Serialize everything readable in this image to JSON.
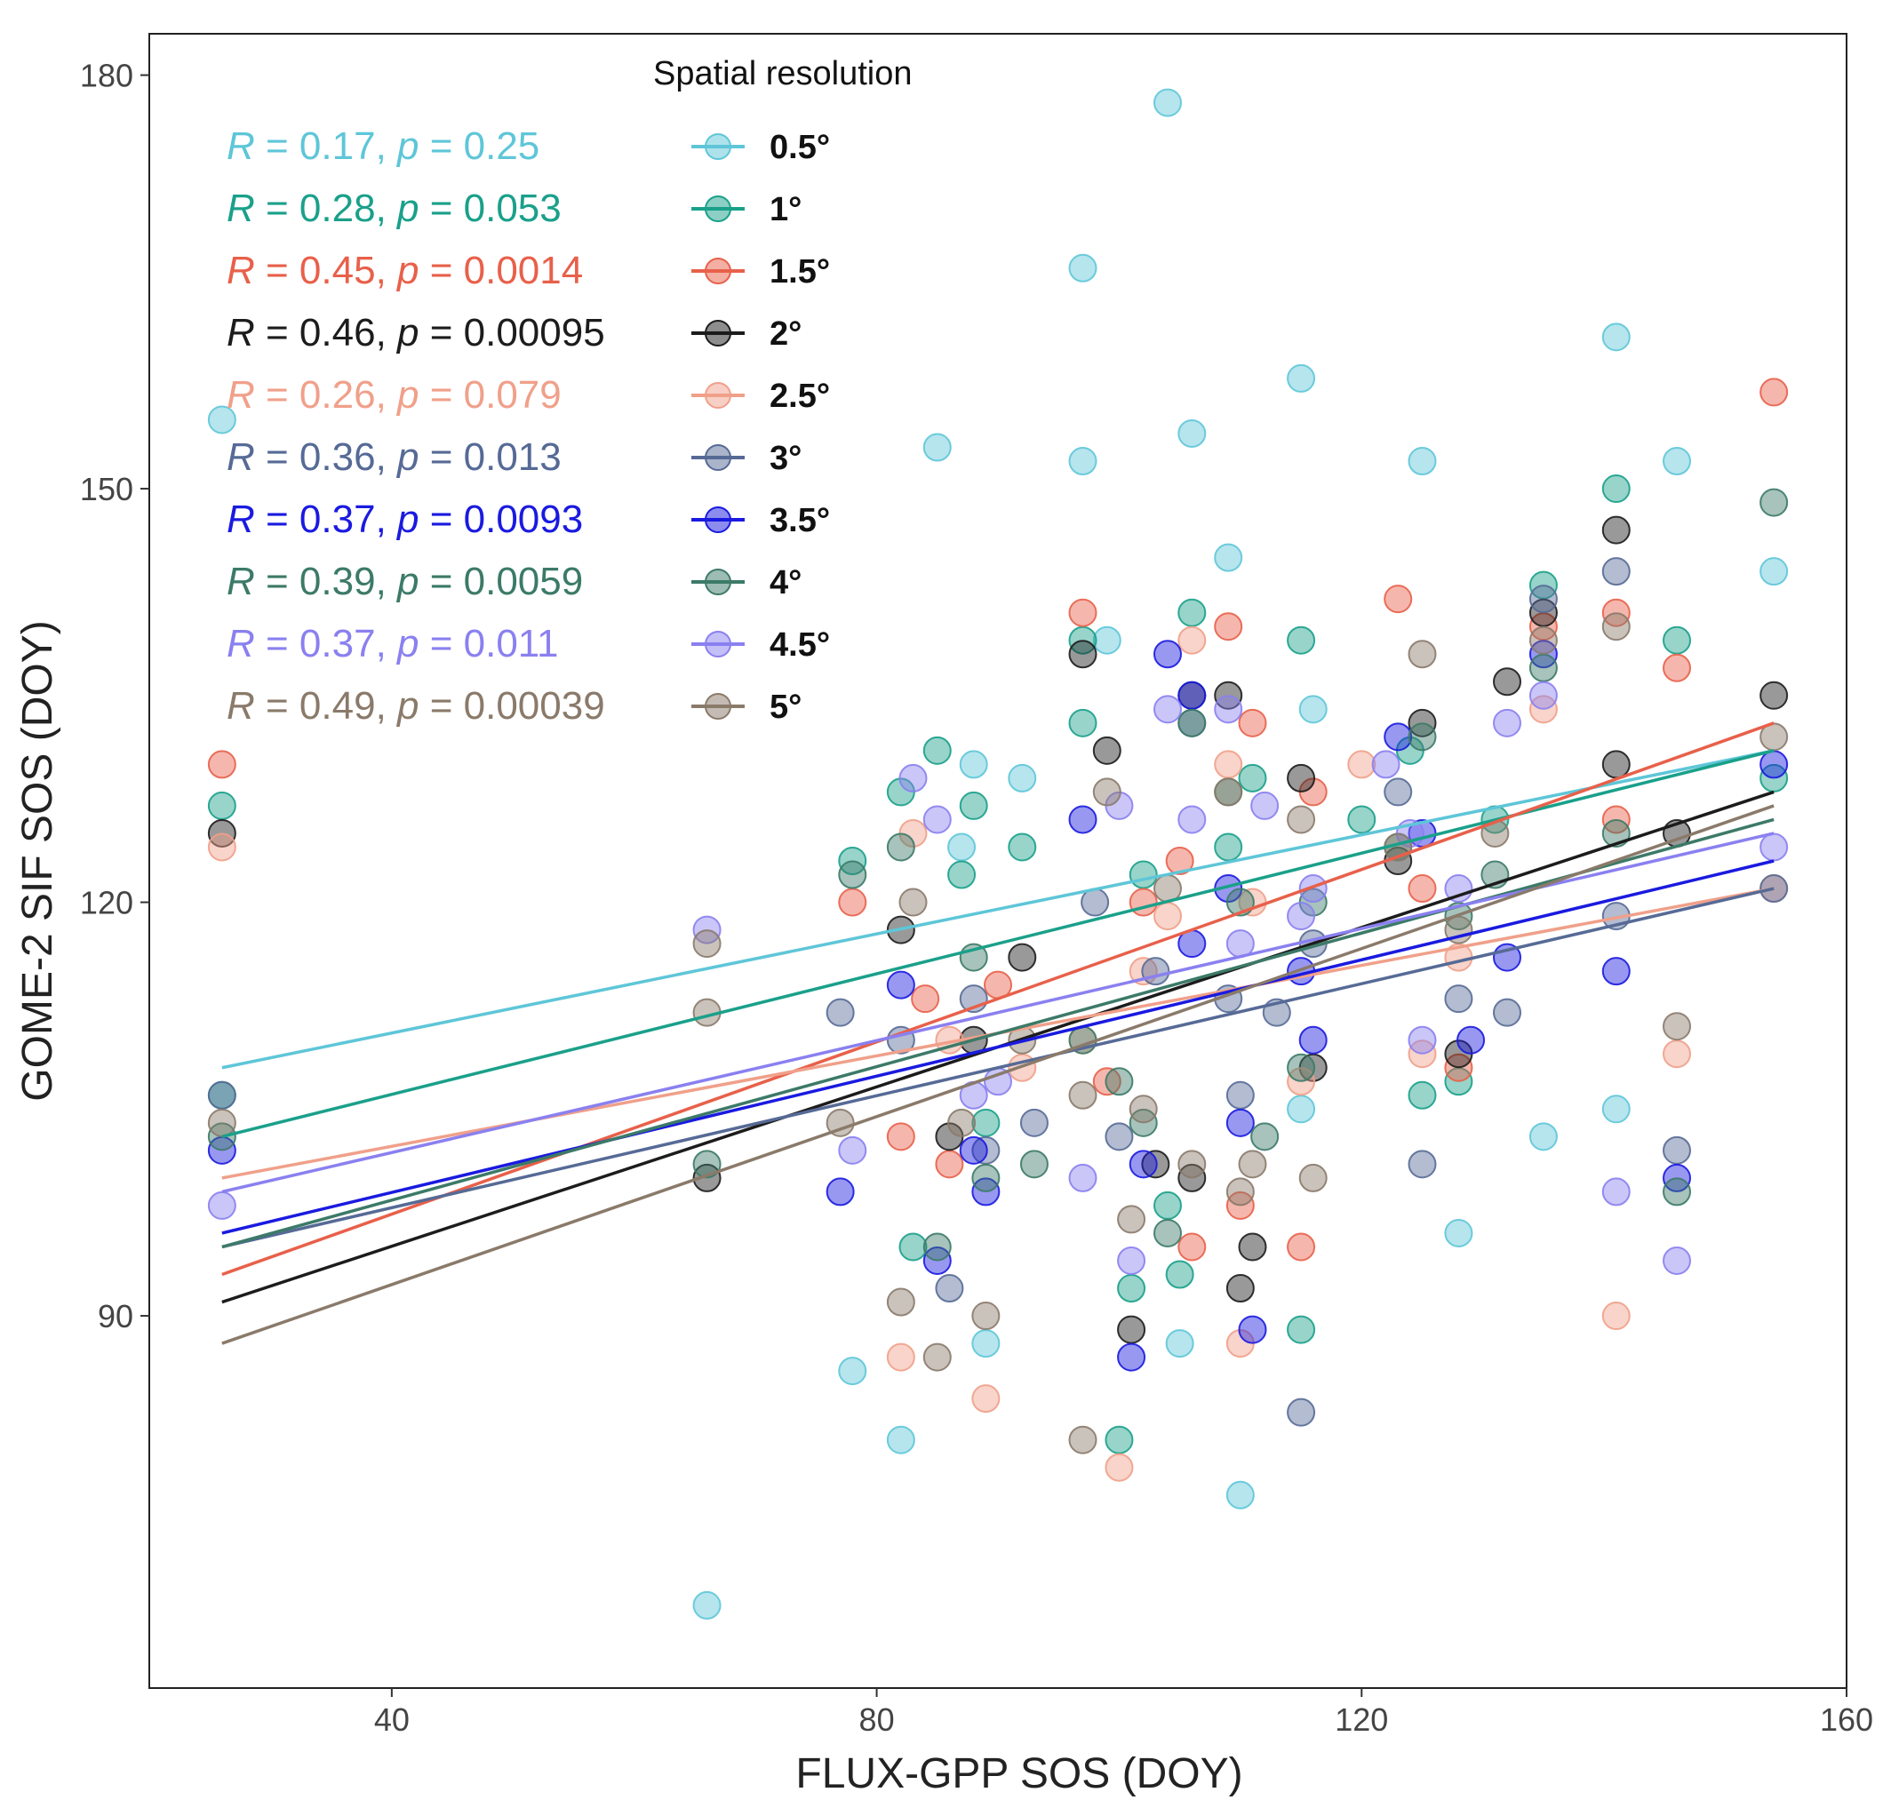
{
  "chart_data": {
    "type": "scatter",
    "title": "",
    "xlabel": "FLUX-GPP SOS (DOY)",
    "ylabel": "GOME-2 SIF SOS (DOY)",
    "xlim": [
      20,
      160
    ],
    "ylim": [
      63,
      183
    ],
    "xticks": [
      40,
      80,
      120,
      160
    ],
    "yticks": [
      90,
      120,
      150,
      180
    ],
    "grid": false,
    "legend": {
      "title": "Spatial resolution",
      "placement": "top-left"
    },
    "series": [
      {
        "name": "0.5°",
        "color": "#5ec6d8",
        "stats": "R = 0.17, p = 0.25",
        "R": "0.17",
        "p": "0.25",
        "fit": [
          [
            26,
            108
          ],
          [
            154,
            131
          ]
        ],
        "points": [
          [
            26,
            155
          ],
          [
            66,
            69
          ],
          [
            78,
            86
          ],
          [
            82,
            81
          ],
          [
            85,
            153
          ],
          [
            87,
            124
          ],
          [
            88,
            130
          ],
          [
            89,
            88
          ],
          [
            92,
            129
          ],
          [
            97,
            152
          ],
          [
            97,
            166
          ],
          [
            99,
            139
          ],
          [
            104,
            178
          ],
          [
            105,
            88
          ],
          [
            106,
            154
          ],
          [
            109,
            145
          ],
          [
            110,
            77
          ],
          [
            115,
            158
          ],
          [
            115,
            105
          ],
          [
            116,
            134
          ],
          [
            125,
            152
          ],
          [
            128,
            96
          ],
          [
            135,
            103
          ],
          [
            141,
            161
          ],
          [
            141,
            105
          ],
          [
            146,
            152
          ],
          [
            154,
            144
          ]
        ]
      },
      {
        "name": "1°",
        "color": "#1aa08a",
        "stats": "R = 0.28, p = 0.053",
        "R": "0.28",
        "p": "0.053",
        "fit": [
          [
            26,
            103
          ],
          [
            154,
            131
          ]
        ],
        "points": [
          [
            26,
            127
          ],
          [
            26,
            106
          ],
          [
            78,
            123
          ],
          [
            82,
            128
          ],
          [
            83,
            95
          ],
          [
            85,
            131
          ],
          [
            87,
            122
          ],
          [
            88,
            127
          ],
          [
            89,
            104
          ],
          [
            92,
            124
          ],
          [
            97,
            133
          ],
          [
            97,
            139
          ],
          [
            100,
            81
          ],
          [
            101,
            92
          ],
          [
            102,
            122
          ],
          [
            104,
            98
          ],
          [
            105,
            93
          ],
          [
            106,
            141
          ],
          [
            109,
            124
          ],
          [
            111,
            129
          ],
          [
            115,
            139
          ],
          [
            115,
            89
          ],
          [
            120,
            126
          ],
          [
            124,
            131
          ],
          [
            125,
            106
          ],
          [
            128,
            107
          ],
          [
            131,
            126
          ],
          [
            135,
            143
          ],
          [
            141,
            150
          ],
          [
            146,
            139
          ],
          [
            154,
            129
          ]
        ]
      },
      {
        "name": "1.5°",
        "color": "#e8604a",
        "stats": "R = 0.45, p = 0.0014",
        "R": "0.45",
        "p": "0.0014",
        "fit": [
          [
            26,
            93
          ],
          [
            154,
            133
          ]
        ],
        "points": [
          [
            26,
            130
          ],
          [
            78,
            120
          ],
          [
            82,
            103
          ],
          [
            84,
            113
          ],
          [
            86,
            101
          ],
          [
            90,
            114
          ],
          [
            97,
            141
          ],
          [
            99,
            107
          ],
          [
            102,
            120
          ],
          [
            105,
            123
          ],
          [
            106,
            95
          ],
          [
            109,
            140
          ],
          [
            110,
            98
          ],
          [
            111,
            133
          ],
          [
            115,
            95
          ],
          [
            116,
            128
          ],
          [
            123,
            142
          ],
          [
            125,
            121
          ],
          [
            128,
            108
          ],
          [
            135,
            140
          ],
          [
            141,
            141
          ],
          [
            141,
            126
          ],
          [
            146,
            137
          ],
          [
            154,
            157
          ]
        ]
      },
      {
        "name": "2°",
        "color": "#1c1c1c",
        "stats": "R = 0.46, p = 0.00095",
        "R": "0.46",
        "p": "0.00095",
        "fit": [
          [
            26,
            91
          ],
          [
            154,
            128
          ]
        ],
        "points": [
          [
            26,
            125
          ],
          [
            66,
            100
          ],
          [
            82,
            118
          ],
          [
            86,
            103
          ],
          [
            88,
            110
          ],
          [
            92,
            116
          ],
          [
            97,
            138
          ],
          [
            99,
            131
          ],
          [
            101,
            89
          ],
          [
            103,
            101
          ],
          [
            106,
            135
          ],
          [
            106,
            100
          ],
          [
            109,
            135
          ],
          [
            110,
            92
          ],
          [
            111,
            95
          ],
          [
            115,
            129
          ],
          [
            116,
            108
          ],
          [
            123,
            123
          ],
          [
            125,
            133
          ],
          [
            128,
            109
          ],
          [
            132,
            136
          ],
          [
            135,
            141
          ],
          [
            141,
            147
          ],
          [
            141,
            130
          ],
          [
            146,
            125
          ],
          [
            154,
            135
          ]
        ]
      },
      {
        "name": "2.5°",
        "color": "#f0a08a",
        "stats": "R = 0.26, p = 0.079",
        "R": "0.26",
        "p": "0.079",
        "fit": [
          [
            26,
            100
          ],
          [
            154,
            121
          ]
        ],
        "points": [
          [
            26,
            124
          ],
          [
            82,
            87
          ],
          [
            83,
            125
          ],
          [
            86,
            110
          ],
          [
            89,
            84
          ],
          [
            92,
            108
          ],
          [
            97,
            110
          ],
          [
            100,
            79
          ],
          [
            102,
            115
          ],
          [
            104,
            119
          ],
          [
            106,
            139
          ],
          [
            109,
            130
          ],
          [
            110,
            88
          ],
          [
            111,
            120
          ],
          [
            115,
            107
          ],
          [
            120,
            130
          ],
          [
            125,
            109
          ],
          [
            128,
            116
          ],
          [
            135,
            134
          ],
          [
            141,
            90
          ],
          [
            146,
            109
          ],
          [
            154,
            121
          ]
        ]
      },
      {
        "name": "3°",
        "color": "#566a96",
        "stats": "R = 0.36, p = 0.013",
        "R": "0.36",
        "p": "0.013",
        "fit": [
          [
            26,
            95
          ],
          [
            154,
            121
          ]
        ],
        "points": [
          [
            26,
            106
          ],
          [
            77,
            112
          ],
          [
            82,
            110
          ],
          [
            86,
            92
          ],
          [
            88,
            113
          ],
          [
            89,
            102
          ],
          [
            93,
            104
          ],
          [
            98,
            120
          ],
          [
            100,
            103
          ],
          [
            103,
            115
          ],
          [
            106,
            133
          ],
          [
            109,
            113
          ],
          [
            110,
            106
          ],
          [
            113,
            112
          ],
          [
            115,
            83
          ],
          [
            116,
            117
          ],
          [
            123,
            128
          ],
          [
            125,
            101
          ],
          [
            128,
            113
          ],
          [
            132,
            112
          ],
          [
            135,
            142
          ],
          [
            141,
            144
          ],
          [
            141,
            119
          ],
          [
            146,
            102
          ],
          [
            154,
            121
          ]
        ]
      },
      {
        "name": "3.5°",
        "color": "#1a1ae0",
        "stats": "R = 0.37, p = 0.0093",
        "R": "0.37",
        "p": "0.0093",
        "fit": [
          [
            26,
            96
          ],
          [
            154,
            123
          ]
        ],
        "points": [
          [
            26,
            102
          ],
          [
            77,
            99
          ],
          [
            82,
            114
          ],
          [
            85,
            94
          ],
          [
            88,
            102
          ],
          [
            89,
            99
          ],
          [
            97,
            126
          ],
          [
            101,
            87
          ],
          [
            102,
            101
          ],
          [
            104,
            138
          ],
          [
            106,
            135
          ],
          [
            106,
            117
          ],
          [
            109,
            121
          ],
          [
            110,
            104
          ],
          [
            111,
            89
          ],
          [
            115,
            115
          ],
          [
            116,
            110
          ],
          [
            123,
            132
          ],
          [
            125,
            125
          ],
          [
            129,
            110
          ],
          [
            132,
            116
          ],
          [
            135,
            138
          ],
          [
            141,
            115
          ],
          [
            146,
            100
          ],
          [
            154,
            130
          ]
        ]
      },
      {
        "name": "4°",
        "color": "#3c7a68",
        "stats": "R = 0.39, p = 0.0059",
        "R": "0.39",
        "p": "0.0059",
        "fit": [
          [
            26,
            95
          ],
          [
            154,
            126
          ]
        ],
        "points": [
          [
            26,
            103
          ],
          [
            66,
            101
          ],
          [
            78,
            122
          ],
          [
            82,
            124
          ],
          [
            85,
            95
          ],
          [
            88,
            116
          ],
          [
            89,
            100
          ],
          [
            93,
            101
          ],
          [
            97,
            110
          ],
          [
            100,
            107
          ],
          [
            102,
            104
          ],
          [
            104,
            96
          ],
          [
            106,
            133
          ],
          [
            109,
            128
          ],
          [
            110,
            120
          ],
          [
            112,
            103
          ],
          [
            115,
            108
          ],
          [
            116,
            120
          ],
          [
            123,
            124
          ],
          [
            125,
            132
          ],
          [
            128,
            119
          ],
          [
            131,
            122
          ],
          [
            135,
            137
          ],
          [
            141,
            125
          ],
          [
            146,
            99
          ],
          [
            154,
            149
          ]
        ]
      },
      {
        "name": "4.5°",
        "color": "#8a80f0",
        "stats": "R = 0.37, p = 0.011",
        "R": "0.37",
        "p": "0.011",
        "fit": [
          [
            26,
            99
          ],
          [
            154,
            125
          ]
        ],
        "points": [
          [
            26,
            98
          ],
          [
            66,
            118
          ],
          [
            78,
            102
          ],
          [
            83,
            129
          ],
          [
            85,
            126
          ],
          [
            88,
            106
          ],
          [
            90,
            107
          ],
          [
            97,
            100
          ],
          [
            100,
            127
          ],
          [
            101,
            94
          ],
          [
            104,
            134
          ],
          [
            106,
            126
          ],
          [
            109,
            134
          ],
          [
            110,
            117
          ],
          [
            112,
            127
          ],
          [
            115,
            119
          ],
          [
            116,
            121
          ],
          [
            122,
            130
          ],
          [
            124,
            125
          ],
          [
            125,
            110
          ],
          [
            128,
            121
          ],
          [
            132,
            133
          ],
          [
            135,
            135
          ],
          [
            141,
            99
          ],
          [
            146,
            94
          ],
          [
            154,
            124
          ]
        ]
      },
      {
        "name": "5°",
        "color": "#8a7a6a",
        "stats": "R = 0.49, p = 0.00039",
        "R": "0.49",
        "p": "0.00039",
        "fit": [
          [
            26,
            88
          ],
          [
            154,
            127
          ]
        ],
        "points": [
          [
            26,
            104
          ],
          [
            66,
            117
          ],
          [
            66,
            112
          ],
          [
            77,
            104
          ],
          [
            82,
            91
          ],
          [
            83,
            120
          ],
          [
            85,
            87
          ],
          [
            87,
            104
          ],
          [
            89,
            90
          ],
          [
            92,
            110
          ],
          [
            97,
            81
          ],
          [
            97,
            106
          ],
          [
            99,
            128
          ],
          [
            101,
            97
          ],
          [
            102,
            105
          ],
          [
            104,
            121
          ],
          [
            106,
            101
          ],
          [
            109,
            128
          ],
          [
            110,
            99
          ],
          [
            111,
            101
          ],
          [
            115,
            126
          ],
          [
            116,
            100
          ],
          [
            123,
            124
          ],
          [
            125,
            138
          ],
          [
            128,
            118
          ],
          [
            131,
            125
          ],
          [
            135,
            139
          ],
          [
            141,
            140
          ],
          [
            146,
            111
          ],
          [
            154,
            132
          ]
        ]
      }
    ]
  }
}
